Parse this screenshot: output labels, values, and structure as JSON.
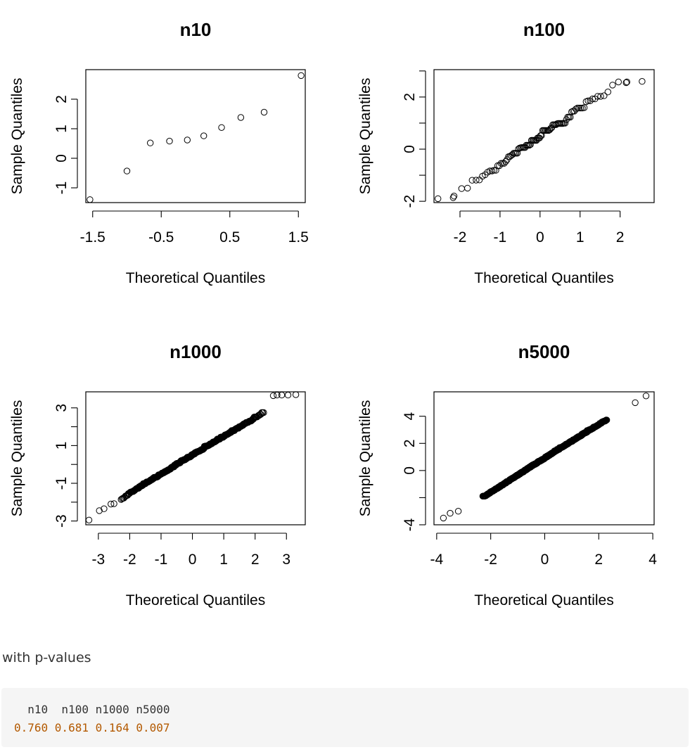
{
  "chart_data": [
    {
      "type": "scatter",
      "title": "n10",
      "xlabel": "Theoretical Quantiles",
      "ylabel": "Sample Quantiles",
      "xlim": [
        -1.6,
        1.6
      ],
      "ylim": [
        -1.5,
        3.0
      ],
      "xticks": [
        -1.5,
        -0.5,
        0.5,
        1.5
      ],
      "xtick_labels": [
        "-1.5",
        "-0.5",
        "0.5",
        "1.5"
      ],
      "yticks": [
        -1,
        0,
        1,
        2
      ],
      "ytick_labels": [
        "-1",
        "0",
        "1",
        "2"
      ],
      "points": [
        [
          -1.54,
          -1.4
        ],
        [
          -1.0,
          -0.43
        ],
        [
          -0.66,
          0.52
        ],
        [
          -0.38,
          0.58
        ],
        [
          -0.12,
          0.62
        ],
        [
          0.12,
          0.76
        ],
        [
          0.38,
          1.04
        ],
        [
          0.66,
          1.38
        ],
        [
          1.0,
          1.56
        ],
        [
          1.54,
          2.8
        ]
      ]
    },
    {
      "type": "scatter",
      "title": "n100",
      "xlabel": "Theoretical Quantiles",
      "ylabel": "Sample Quantiles",
      "xlim": [
        -2.65,
        2.85
      ],
      "ylim": [
        -2.05,
        3.05
      ],
      "xticks": [
        -2,
        -1,
        0,
        1,
        2
      ],
      "xtick_labels": [
        "-2",
        "-1",
        "0",
        "1",
        "2"
      ],
      "yticks": [
        -2,
        0,
        2
      ],
      "ytick_labels": [
        "-2",
        "0",
        "2"
      ],
      "minor_yticks": [
        -1,
        1,
        3
      ],
      "n": 100,
      "line": {
        "intercept": 0.45,
        "slope": 1.05
      },
      "noise": 0.1,
      "points": [
        [
          -2.55,
          -1.9
        ],
        [
          -2.15,
          -1.8
        ],
        [
          2.15,
          2.55
        ],
        [
          2.55,
          2.6
        ]
      ]
    },
    {
      "type": "scatter",
      "title": "n1000",
      "xlabel": "Theoretical Quantiles",
      "ylabel": "Sample Quantiles",
      "xlim": [
        -3.4,
        3.6
      ],
      "ylim": [
        -3.2,
        3.85
      ],
      "xticks": [
        -3,
        -2,
        -1,
        0,
        1,
        2,
        3
      ],
      "xtick_labels": [
        "-3",
        "-2",
        "-1",
        "0",
        "1",
        "2",
        "3"
      ],
      "yticks": [
        -3,
        -1,
        1,
        3
      ],
      "ytick_labels": [
        "-3",
        "-1",
        "1",
        "3"
      ],
      "minor_yticks": [
        -2,
        0,
        2
      ],
      "n": 1000,
      "line": {
        "intercept": 0.45,
        "slope": 1.0
      },
      "noise": 0.04,
      "points": [
        [
          -3.3,
          -2.95
        ],
        [
          -2.97,
          -2.45
        ],
        [
          -2.82,
          -2.35
        ],
        [
          -2.6,
          -2.1
        ],
        [
          -2.5,
          -2.08
        ],
        [
          2.58,
          3.65
        ],
        [
          2.7,
          3.68
        ],
        [
          2.85,
          3.68
        ],
        [
          3.05,
          3.68
        ],
        [
          3.3,
          3.7
        ]
      ]
    },
    {
      "type": "scatter",
      "title": "n5000",
      "xlabel": "Theoretical Quantiles",
      "ylabel": "Sample Quantiles",
      "xlim": [
        -4.1,
        4.05
      ],
      "ylim": [
        -4.0,
        5.8
      ],
      "xticks": [
        -4,
        -2,
        0,
        2,
        4
      ],
      "xtick_labels": [
        "-4",
        "-2",
        "0",
        "2",
        "4"
      ],
      "yticks": [
        -4,
        0,
        2,
        4
      ],
      "ytick_labels": [
        "-4",
        "0",
        "2",
        "4"
      ],
      "minor_yticks": [
        -2
      ],
      "n": 5000,
      "line": {
        "intercept": 0.85,
        "slope": 1.25
      },
      "noise": 0.04,
      "points": [
        [
          -3.75,
          -3.5
        ],
        [
          -3.5,
          -3.15
        ],
        [
          -3.2,
          -3.0
        ],
        [
          3.35,
          5.0
        ],
        [
          3.75,
          5.5
        ]
      ]
    }
  ],
  "caption": "with p-values",
  "output": {
    "header": "  n10  n100 n1000 n5000",
    "values": "0.760 0.681 0.164 0.007"
  }
}
